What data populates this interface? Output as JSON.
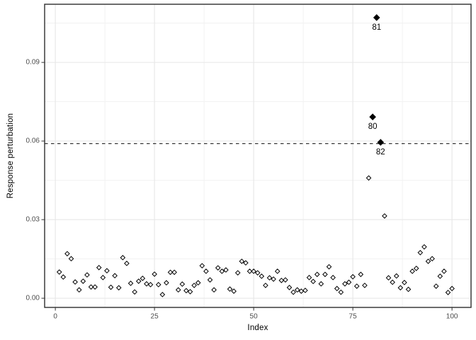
{
  "figure": {
    "x_axis_title": "Index",
    "y_axis_title": "Response perturbation"
  },
  "colors": {
    "background": "#ffffff",
    "panel_background": "#ffffff",
    "panel_border": "#2d2d2d",
    "grid_major": "#e7e7e7",
    "grid_minor": "#f1f1f1",
    "tick_mark": "#333333",
    "tick_label": "#4d4d4d",
    "point": "#000000",
    "threshold_line": "#000000",
    "annotation_text": "#000000"
  },
  "chart_data": {
    "type": "scatter",
    "title": "",
    "xlabel": "Index",
    "ylabel": "Response perturbation",
    "xlim": [
      -2.7,
      104.8
    ],
    "ylim": [
      -0.0035,
      0.1122
    ],
    "x_major_ticks": [
      0,
      25,
      50,
      75,
      100
    ],
    "x_tick_labels": [
      "0",
      "25",
      "50",
      "75",
      "100"
    ],
    "x_minor_ticks": [
      12.5,
      37.5,
      62.5,
      87.5
    ],
    "y_major_ticks": [
      0.0,
      0.03,
      0.06,
      0.09
    ],
    "y_tick_labels": [
      "0.00",
      "0.03",
      "0.06",
      "0.09"
    ],
    "y_minor_ticks": [
      0.015,
      0.045,
      0.075,
      0.105
    ],
    "grid": "major+minor",
    "legend": "none",
    "marker": "open-diamond",
    "threshold_line": {
      "y": 0.059,
      "style": "dashed"
    },
    "x": [
      1,
      2,
      3,
      4,
      5,
      6,
      7,
      8,
      9,
      10,
      11,
      12,
      13,
      14,
      15,
      16,
      17,
      18,
      19,
      20,
      21,
      22,
      23,
      24,
      25,
      26,
      27,
      28,
      29,
      30,
      31,
      32,
      33,
      34,
      35,
      36,
      37,
      38,
      39,
      40,
      41,
      42,
      43,
      44,
      45,
      46,
      47,
      48,
      49,
      50,
      51,
      52,
      53,
      54,
      55,
      56,
      57,
      58,
      59,
      60,
      61,
      62,
      63,
      64,
      65,
      66,
      67,
      68,
      69,
      70,
      71,
      72,
      73,
      74,
      75,
      76,
      77,
      78,
      79,
      80,
      81,
      82,
      83,
      84,
      85,
      86,
      87,
      88,
      89,
      90,
      91,
      92,
      93,
      94,
      95,
      96,
      97,
      98,
      99,
      100
    ],
    "y": [
      0.01,
      0.0081,
      0.017,
      0.0151,
      0.0062,
      0.0032,
      0.0065,
      0.0089,
      0.0043,
      0.0043,
      0.0117,
      0.0079,
      0.0105,
      0.0042,
      0.0086,
      0.004,
      0.0155,
      0.0133,
      0.0057,
      0.0024,
      0.0065,
      0.0076,
      0.0055,
      0.0052,
      0.0092,
      0.0052,
      0.0014,
      0.0059,
      0.0099,
      0.0099,
      0.0032,
      0.0054,
      0.0029,
      0.0025,
      0.0049,
      0.0059,
      0.0124,
      0.0103,
      0.007,
      0.0032,
      0.0116,
      0.0103,
      0.0108,
      0.0035,
      0.0027,
      0.0097,
      0.0141,
      0.0135,
      0.0103,
      0.0103,
      0.0097,
      0.0084,
      0.0049,
      0.0078,
      0.0073,
      0.0103,
      0.0068,
      0.007,
      0.0041,
      0.0023,
      0.0032,
      0.0027,
      0.003,
      0.0079,
      0.0064,
      0.0091,
      0.0055,
      0.0091,
      0.012,
      0.0079,
      0.0037,
      0.0023,
      0.0055,
      0.0061,
      0.0082,
      0.0046,
      0.0091,
      0.0049,
      0.0459,
      0.0692,
      0.1071,
      0.0595,
      0.0314,
      0.0078,
      0.0061,
      0.0085,
      0.004,
      0.006,
      0.0034,
      0.0103,
      0.0114,
      0.0174,
      0.0196,
      0.0141,
      0.0151,
      0.0046,
      0.0084,
      0.0103,
      0.0022,
      0.0037
    ],
    "highlighted": [
      {
        "x": 80,
        "y": 0.0692,
        "label": "80",
        "marker": "filled-diamond"
      },
      {
        "x": 81,
        "y": 0.1071,
        "label": "81",
        "marker": "filled-diamond"
      },
      {
        "x": 82,
        "y": 0.0595,
        "label": "82",
        "marker": "filled-diamond"
      }
    ]
  }
}
